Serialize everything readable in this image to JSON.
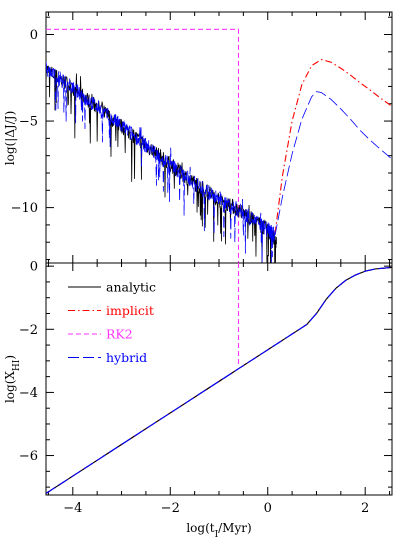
{
  "chart_data": [
    {
      "type": "line",
      "panel": "top",
      "ylabel": "log(|ΔJ/J)",
      "xlim": [
        -4.55,
        2.55
      ],
      "ylim": [
        -13.2,
        1.3
      ],
      "yticks": [
        0,
        -5,
        -10
      ],
      "yticklabels": [
        "0",
        "−5",
        "−10"
      ],
      "xticks": [
        -4,
        -2,
        0,
        2
      ],
      "series": [
        {
          "name": "analytic",
          "style": "solid",
          "color": "#000000",
          "x": [
            -4.55,
            -4.0,
            -3.5,
            -3.0,
            -2.5,
            -2.0,
            -1.5,
            -1.0,
            -0.5,
            0.0,
            0.18
          ],
          "y": [
            -2.0,
            -3.1,
            -4.2,
            -5.3,
            -6.4,
            -7.5,
            -8.6,
            -9.5,
            -10.3,
            -11.3,
            -12.1
          ]
        },
        {
          "name": "implicit",
          "style": "dashdot",
          "color": "#ff0000",
          "x": [
            0.15,
            0.3,
            0.5,
            0.7,
            0.9,
            1.1,
            1.3,
            1.5,
            1.7,
            1.9,
            2.1,
            2.3,
            2.55
          ],
          "y": [
            -11.5,
            -8.2,
            -5.0,
            -2.9,
            -1.8,
            -1.45,
            -1.6,
            -1.95,
            -2.35,
            -2.8,
            -3.2,
            -3.65,
            -4.15
          ]
        },
        {
          "name": "RK2",
          "style": "dashed",
          "color": "#ff33ff",
          "x": [
            -4.55,
            -0.6,
            -0.6,
            -0.53
          ],
          "y": [
            0.3,
            0.3,
            -13.2,
            -13.2
          ]
        },
        {
          "name": "hybrid",
          "style": "longdash",
          "color": "#0000ff",
          "x": [
            -4.55,
            -4.0,
            -3.5,
            -3.0,
            -2.5,
            -2.0,
            -1.5,
            -1.0,
            -0.5,
            0.0,
            0.15,
            0.3,
            0.5,
            0.7,
            0.9,
            1.0,
            1.1,
            1.3,
            1.5,
            1.7,
            1.9,
            2.1,
            2.3,
            2.55
          ],
          "y": [
            -2.0,
            -3.1,
            -4.2,
            -5.3,
            -6.4,
            -7.5,
            -8.6,
            -9.5,
            -10.3,
            -11.3,
            -11.6,
            -9.4,
            -6.9,
            -4.9,
            -3.6,
            -3.3,
            -3.35,
            -3.75,
            -4.3,
            -4.9,
            -5.55,
            -6.1,
            -6.6,
            -7.2
          ]
        }
      ]
    },
    {
      "type": "line",
      "panel": "bottom",
      "xlabel": "log(t_I/Myr)",
      "ylabel": "log(X_HI)",
      "xlim": [
        -4.55,
        2.55
      ],
      "ylim": [
        -7.25,
        0.1
      ],
      "yticks": [
        0,
        -2,
        -4,
        -6
      ],
      "yticklabels": [
        "0",
        "−2",
        "−4",
        "−6"
      ],
      "xticks": [
        -4,
        -2,
        0,
        2
      ],
      "xticklabels": [
        "−4",
        "−2",
        "0",
        "2"
      ],
      "series": [
        {
          "name": "analytic",
          "style": "solid",
          "color": "#000000",
          "x": [
            -4.55,
            -4.0,
            -3.0,
            -2.0,
            -1.0,
            0.0,
            0.5,
            0.8,
            1.0,
            1.2,
            1.4,
            1.6,
            1.8,
            2.0,
            2.2,
            2.55
          ],
          "y": [
            -7.2,
            -6.65,
            -5.65,
            -4.65,
            -3.65,
            -2.65,
            -2.15,
            -1.85,
            -1.5,
            -1.05,
            -0.7,
            -0.45,
            -0.28,
            -0.16,
            -0.09,
            -0.04
          ]
        },
        {
          "name": "implicit",
          "style": "dashdot",
          "color": "#ff0000",
          "x": [
            -4.55,
            -4.0,
            -3.0,
            -2.0,
            -1.0,
            0.0,
            0.5,
            0.8,
            1.0,
            1.2,
            1.4,
            1.6,
            1.8,
            2.0,
            2.2,
            2.55
          ],
          "y": [
            -7.2,
            -6.65,
            -5.65,
            -4.65,
            -3.65,
            -2.65,
            -2.15,
            -1.85,
            -1.5,
            -1.05,
            -0.7,
            -0.45,
            -0.28,
            -0.16,
            -0.09,
            -0.04
          ]
        },
        {
          "name": "RK2",
          "style": "dashed",
          "color": "#ff33ff",
          "x": [
            -0.6,
            -0.6
          ],
          "y": [
            0.1,
            -3.1
          ]
        },
        {
          "name": "hybrid",
          "style": "longdash",
          "color": "#0000ff",
          "x": [
            -4.55,
            -4.0,
            -3.0,
            -2.0,
            -1.0,
            0.0,
            0.5,
            0.8,
            1.0,
            1.2,
            1.4,
            1.6,
            1.8,
            2.0,
            2.2,
            2.55
          ],
          "y": [
            -7.2,
            -6.65,
            -5.65,
            -4.65,
            -3.65,
            -2.65,
            -2.15,
            -1.85,
            -1.5,
            -1.05,
            -0.7,
            -0.45,
            -0.28,
            -0.16,
            -0.09,
            -0.04
          ]
        }
      ]
    }
  ],
  "legend": {
    "placement": "top-left",
    "panel": "bottom",
    "items": [
      {
        "label": "analytic",
        "color": "#000000",
        "style": "solid"
      },
      {
        "label": "implicit",
        "color": "#ff0000",
        "style": "dashdot"
      },
      {
        "label": "RK2",
        "color": "#ff33ff",
        "style": "dashed"
      },
      {
        "label": "hybrid",
        "color": "#0000ff",
        "style": "longdash"
      }
    ]
  }
}
